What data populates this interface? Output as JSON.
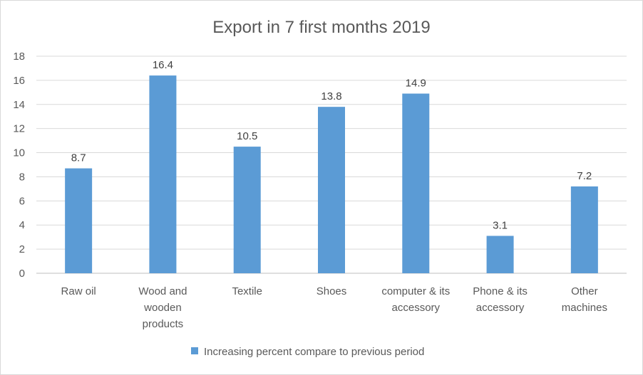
{
  "chart_data": {
    "type": "bar",
    "title": "Export in 7 first months 2019",
    "categories": [
      [
        "Raw oil"
      ],
      [
        "Wood and",
        "wooden",
        "products"
      ],
      [
        "Textile"
      ],
      [
        "Shoes"
      ],
      [
        "computer & its",
        "accessory"
      ],
      [
        "Phone & its",
        "accessory"
      ],
      [
        "Other",
        "machines"
      ]
    ],
    "series": [
      {
        "name": "Increasing percent compare to previous period",
        "values": [
          8.7,
          16.4,
          10.5,
          13.8,
          14.9,
          3.1,
          7.2
        ],
        "color": "#5b9bd5"
      }
    ],
    "ylim": [
      0,
      18
    ],
    "yticks": [
      0,
      2,
      4,
      6,
      8,
      10,
      12,
      14,
      16,
      18
    ],
    "grid": true,
    "legend": "bottom",
    "data_labels": true,
    "xlabel": "",
    "ylabel": ""
  }
}
